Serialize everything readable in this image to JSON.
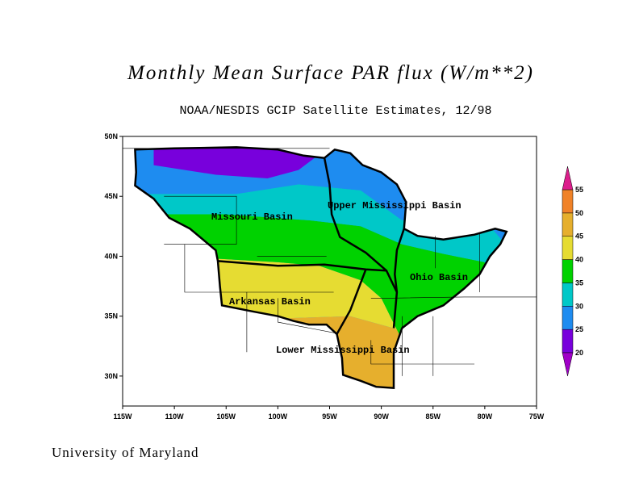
{
  "title": "Monthly Mean Surface PAR flux (W/m**2)",
  "subtitle": "NOAA/NESDIS GCIP Satellite Estimates, 12/98",
  "footer": "University of Maryland",
  "map": {
    "xlim": [
      -115,
      -75
    ],
    "ylim": [
      27.5,
      50
    ],
    "xticks": [
      {
        "value": -115,
        "label": "115W"
      },
      {
        "value": -110,
        "label": "110W"
      },
      {
        "value": -105,
        "label": "105W"
      },
      {
        "value": -100,
        "label": "100W"
      },
      {
        "value": -95,
        "label": "95W"
      },
      {
        "value": -90,
        "label": "90W"
      },
      {
        "value": -85,
        "label": "85W"
      },
      {
        "value": -80,
        "label": "80W"
      },
      {
        "value": -75,
        "label": "75W"
      }
    ],
    "yticks": [
      {
        "value": 30,
        "label": "30N"
      },
      {
        "value": 35,
        "label": "35N"
      },
      {
        "value": 40,
        "label": "40N"
      },
      {
        "value": 45,
        "label": "45N"
      },
      {
        "value": 50,
        "label": "50N"
      }
    ],
    "basins": [
      "Missouri Basin",
      "Upper Mississippi Basin",
      "Ohio Basin",
      "Arkansas Basin",
      "Lower Mississippi Basin"
    ],
    "colorbar": {
      "levels": [
        20,
        25,
        30,
        35,
        40,
        45,
        50,
        55
      ],
      "colors": [
        "#a000c8",
        "#7800dc",
        "#1e8cf0",
        "#00c8c8",
        "#00d200",
        "#e6dc32",
        "#e6af2d",
        "#f08228",
        "#dc1e8c"
      ]
    }
  }
}
